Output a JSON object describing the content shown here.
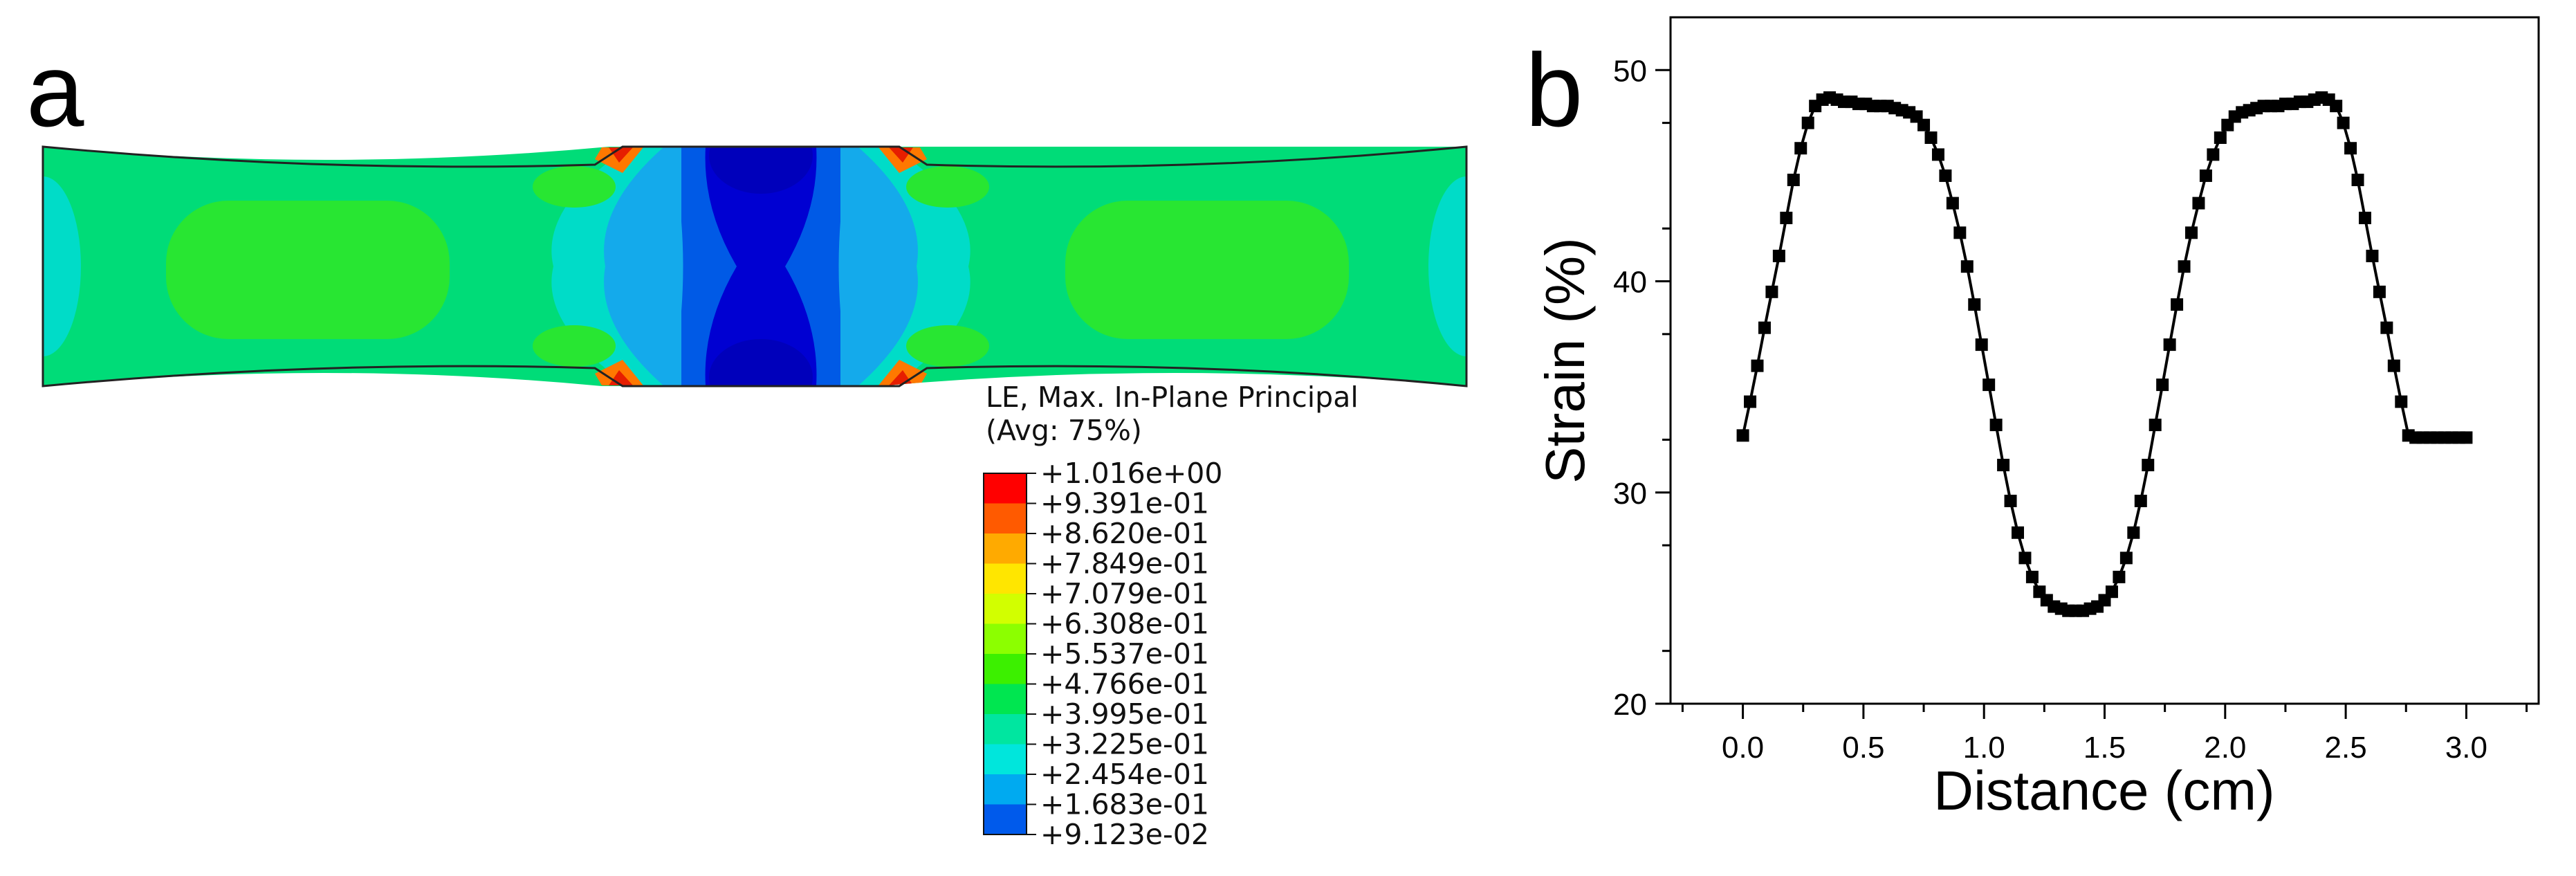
{
  "panel_a": {
    "label": "a",
    "legend": {
      "title_line1": "LE, Max. In-Plane Principal",
      "title_line2": "(Avg: 75%)",
      "levels": [
        {
          "value": "+1.016e+00",
          "color": "#ff0000"
        },
        {
          "value": "+9.391e-01",
          "color": "#ff5a00"
        },
        {
          "value": "+8.620e-01",
          "color": "#ffaa00"
        },
        {
          "value": "+7.849e-01",
          "color": "#ffe600"
        },
        {
          "value": "+7.079e-01",
          "color": "#d2ff00"
        },
        {
          "value": "+6.308e-01",
          "color": "#8cff00"
        },
        {
          "value": "+5.537e-01",
          "color": "#3cf000"
        },
        {
          "value": "+4.766e-01",
          "color": "#00e650"
        },
        {
          "value": "+3.995e-01",
          "color": "#00e6a0"
        },
        {
          "value": "+3.225e-01",
          "color": "#00e6dc"
        },
        {
          "value": "+2.454e-01",
          "color": "#00aaf0"
        },
        {
          "value": "+1.683e-01",
          "color": "#005aeb"
        },
        {
          "value": "+9.123e-02",
          "color": "#0000dc"
        }
      ]
    },
    "colors": {
      "body": "#00dc78",
      "light_green": "#28e632",
      "cyan": "#00dcc8",
      "light_blue": "#14aaeb",
      "mid_blue": "#005ae6",
      "dark_blue": "#0000d2",
      "orange": "#ff7800",
      "red": "#e61e00",
      "yellow": "#f0e600"
    }
  },
  "chart_data": {
    "type": "scatter",
    "panel_label": "b",
    "xlabel": "Distance (cm)",
    "ylabel": "Strain (%)",
    "xlim": [
      -0.3,
      3.3
    ],
    "ylim": [
      20,
      52.5
    ],
    "xticks": [
      "0.0",
      "0.5",
      "1.0",
      "1.5",
      "2.0",
      "2.5",
      "3.0"
    ],
    "xtick_values": [
      0,
      0.5,
      1.0,
      1.5,
      2.0,
      2.5,
      3.0
    ],
    "yticks": [
      "20",
      "30",
      "40",
      "50"
    ],
    "ytick_values": [
      20,
      30,
      40,
      50
    ],
    "series": [
      {
        "name": "Strain",
        "color": "#000000",
        "x": [
          0.0,
          0.03,
          0.06,
          0.09,
          0.12,
          0.15,
          0.18,
          0.21,
          0.24,
          0.27,
          0.3,
          0.33,
          0.36,
          0.39,
          0.42,
          0.45,
          0.48,
          0.51,
          0.54,
          0.57,
          0.6,
          0.63,
          0.66,
          0.69,
          0.72,
          0.75,
          0.78,
          0.81,
          0.84,
          0.87,
          0.9,
          0.93,
          0.96,
          0.99,
          1.02,
          1.05,
          1.08,
          1.11,
          1.14,
          1.17,
          1.2,
          1.23,
          1.26,
          1.29,
          1.32,
          1.35,
          1.38,
          1.41,
          1.44,
          1.47,
          1.5,
          1.53,
          1.56,
          1.59,
          1.62,
          1.65,
          1.68,
          1.71,
          1.74,
          1.77,
          1.8,
          1.83,
          1.86,
          1.89,
          1.92,
          1.95,
          1.98,
          2.01,
          2.04,
          2.07,
          2.1,
          2.13,
          2.16,
          2.19,
          2.22,
          2.25,
          2.28,
          2.31,
          2.34,
          2.37,
          2.4,
          2.43,
          2.46,
          2.49,
          2.52,
          2.55,
          2.58,
          2.61,
          2.64,
          2.67,
          2.7,
          2.73,
          2.76,
          2.79,
          2.82,
          2.85,
          2.88,
          2.91,
          2.94,
          2.97,
          3.0
        ],
        "y": [
          32.7,
          34.3,
          36.0,
          37.8,
          39.5,
          41.2,
          43.0,
          44.8,
          46.3,
          47.5,
          48.3,
          48.6,
          48.7,
          48.6,
          48.5,
          48.5,
          48.4,
          48.4,
          48.3,
          48.3,
          48.3,
          48.2,
          48.1,
          48.0,
          47.8,
          47.4,
          46.8,
          46.0,
          45.0,
          43.7,
          42.3,
          40.7,
          38.9,
          37.0,
          35.1,
          33.2,
          31.3,
          29.6,
          28.1,
          26.9,
          26.0,
          25.3,
          24.9,
          24.6,
          24.5,
          24.4,
          24.4,
          24.4,
          24.5,
          24.6,
          24.9,
          25.3,
          26.0,
          26.9,
          28.1,
          29.6,
          31.3,
          33.2,
          35.1,
          37.0,
          38.9,
          40.7,
          42.3,
          43.7,
          45.0,
          46.0,
          46.8,
          47.4,
          47.8,
          48.0,
          48.1,
          48.2,
          48.3,
          48.3,
          48.3,
          48.4,
          48.4,
          48.5,
          48.5,
          48.6,
          48.7,
          48.6,
          48.3,
          47.5,
          46.3,
          44.8,
          43.0,
          41.2,
          39.5,
          37.8,
          36.0,
          34.3,
          32.7,
          32.6,
          32.6,
          32.6,
          32.6,
          32.6,
          32.6,
          32.6,
          32.6
        ]
      }
    ]
  }
}
